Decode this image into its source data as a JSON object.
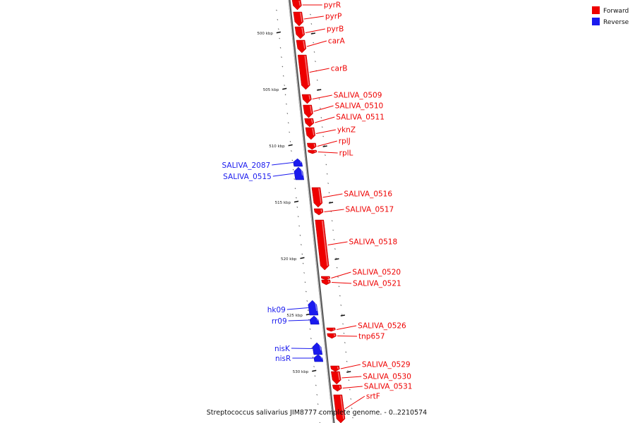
{
  "legend": [
    {
      "label": "Forward",
      "color": "#ee0000"
    },
    {
      "label": "Reverse",
      "color": "#1a1aee"
    }
  ],
  "caption": "Streptococcus salivarius JIM8777 complete genome. - 0..2210574",
  "colors": {
    "forward": "#ee0000",
    "reverse": "#1a1aee",
    "backbone": "#808080"
  },
  "ticks": [
    "500 kbp",
    "505 kbp",
    "510 kbp",
    "515 kbp",
    "520 kbp",
    "525 kbp",
    "530 kbp"
  ],
  "genes": [
    {
      "name": "pyrR",
      "strand": "forward"
    },
    {
      "name": "pyrP",
      "strand": "forward"
    },
    {
      "name": "pyrB",
      "strand": "forward"
    },
    {
      "name": "carA",
      "strand": "forward"
    },
    {
      "name": "carB",
      "strand": "forward"
    },
    {
      "name": "SALIVA_0509",
      "strand": "forward"
    },
    {
      "name": "SALIVA_0510",
      "strand": "forward"
    },
    {
      "name": "SALIVA_0511",
      "strand": "forward"
    },
    {
      "name": "yknZ",
      "strand": "forward"
    },
    {
      "name": "rplJ",
      "strand": "forward"
    },
    {
      "name": "rplL",
      "strand": "forward"
    },
    {
      "name": "SALIVA_2087",
      "strand": "reverse"
    },
    {
      "name": "SALIVA_0515",
      "strand": "reverse"
    },
    {
      "name": "SALIVA_0516",
      "strand": "forward"
    },
    {
      "name": "SALIVA_0517",
      "strand": "forward"
    },
    {
      "name": "SALIVA_0518",
      "strand": "forward"
    },
    {
      "name": "SALIVA_0520",
      "strand": "forward"
    },
    {
      "name": "SALIVA_0521",
      "strand": "forward"
    },
    {
      "name": "hk09",
      "strand": "reverse"
    },
    {
      "name": "rr09",
      "strand": "reverse"
    },
    {
      "name": "SALIVA_0526",
      "strand": "forward"
    },
    {
      "name": "tnp657",
      "strand": "forward"
    },
    {
      "name": "nisK",
      "strand": "reverse"
    },
    {
      "name": "nisR",
      "strand": "reverse"
    },
    {
      "name": "SALIVA_0529",
      "strand": "forward"
    },
    {
      "name": "SALIVA_0530",
      "strand": "forward"
    },
    {
      "name": "SALIVA_0531",
      "strand": "forward"
    },
    {
      "name": "srtF",
      "strand": "forward"
    }
  ]
}
